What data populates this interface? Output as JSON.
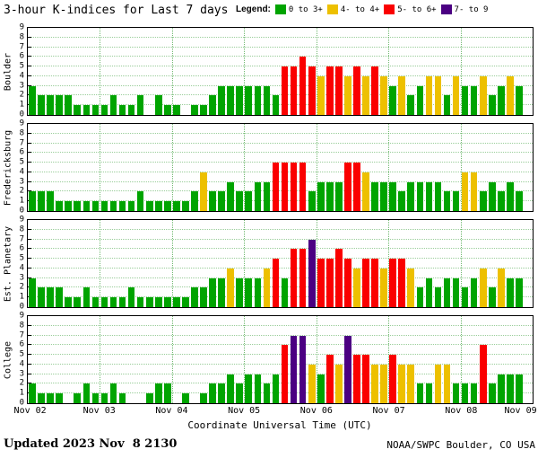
{
  "title": "3-hour K-indices for Last 7 days",
  "legend": {
    "label": "Legend:",
    "items": [
      {
        "label": "0 to 3+",
        "color": "#00a400"
      },
      {
        "label": "4- to 4+",
        "color": "#edc000"
      },
      {
        "label": "5- to 6+",
        "color": "#fa0000"
      },
      {
        "label": "7- to 9",
        "color": "#4b0082"
      }
    ]
  },
  "footer": {
    "updated_label": "Updated",
    "updated_value": "2023 Nov  8 2130",
    "credit": "NOAA/SWPC Boulder, CO USA"
  },
  "chart_data": {
    "type": "bar",
    "title": "3-hour K-indices for Last 7 days",
    "xlabel": "Coordinate Universal Time (UTC)",
    "x_tick_labels": [
      "Nov 02",
      "Nov 03",
      "Nov 04",
      "Nov 05",
      "Nov 06",
      "Nov 07",
      "Nov 08",
      "Nov 09"
    ],
    "ylim": [
      0,
      9
    ],
    "y_ticks": [
      0,
      1,
      2,
      3,
      4,
      5,
      6,
      7,
      8,
      9
    ],
    "days": 7,
    "bars_per_day": 8,
    "interval_hours": 3,
    "grid": "dotted",
    "legend_position": "top-right",
    "color_thresholds": [
      {
        "max": 3.5,
        "color": "#00a400",
        "label": "0 to 3+"
      },
      {
        "max": 4.5,
        "color": "#edc000",
        "label": "4- to 4+"
      },
      {
        "max": 6.5,
        "color": "#fa0000",
        "label": "5- to 6+"
      },
      {
        "max": 9,
        "color": "#4b0082",
        "label": "7- to 9"
      }
    ],
    "series": [
      {
        "name": "Boulder",
        "values": [
          3,
          2,
          2,
          2,
          2,
          1,
          1,
          1,
          1,
          2,
          1,
          1,
          2,
          0,
          2,
          1,
          1,
          0,
          1,
          1,
          2,
          3,
          3,
          3,
          3,
          3,
          3,
          2,
          5,
          5,
          6,
          5,
          4,
          5,
          5,
          4,
          5,
          4,
          5,
          4,
          3,
          4,
          2,
          3,
          4,
          4,
          2,
          4,
          3,
          3,
          4,
          2,
          3,
          4,
          3
        ]
      },
      {
        "name": "Fredericksburg",
        "values": [
          2,
          2,
          2,
          1,
          1,
          1,
          1,
          1,
          1,
          1,
          1,
          1,
          2,
          1,
          1,
          1,
          1,
          1,
          2,
          4,
          2,
          2,
          3,
          2,
          2,
          3,
          3,
          5,
          5,
          5,
          5,
          2,
          3,
          3,
          3,
          5,
          5,
          4,
          3,
          3,
          3,
          2,
          3,
          3,
          3,
          3,
          2,
          2,
          4,
          4,
          2,
          3,
          2,
          3,
          2
        ]
      },
      {
        "name": "Est. Planetary",
        "values": [
          3,
          2,
          2,
          2,
          1,
          1,
          2,
          1,
          1,
          1,
          1,
          2,
          1,
          1,
          1,
          1,
          1,
          1,
          2,
          2,
          3,
          3,
          4,
          3,
          3,
          3,
          4,
          5,
          3,
          6,
          6,
          7,
          5,
          5,
          6,
          5,
          4,
          5,
          5,
          4,
          5,
          5,
          4,
          2,
          3,
          2,
          3,
          3,
          2,
          3,
          4,
          2,
          4,
          3,
          3
        ]
      },
      {
        "name": "College",
        "values": [
          2,
          1,
          1,
          1,
          0,
          1,
          2,
          1,
          1,
          2,
          1,
          0,
          0,
          1,
          2,
          2,
          0,
          1,
          0,
          1,
          2,
          2,
          3,
          2,
          3,
          3,
          2,
          3,
          6,
          7,
          7,
          4,
          3,
          5,
          4,
          7,
          5,
          5,
          4,
          4,
          5,
          4,
          4,
          2,
          2,
          4,
          4,
          2,
          2,
          2,
          6,
          2,
          3,
          3,
          3
        ]
      }
    ]
  }
}
